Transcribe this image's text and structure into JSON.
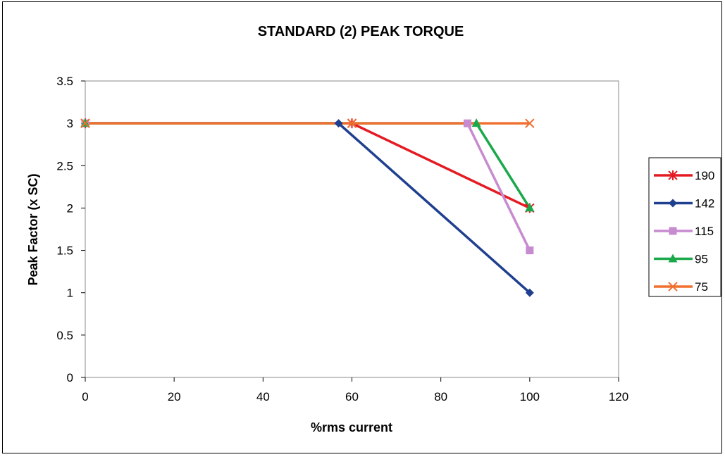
{
  "chart_data": {
    "type": "line",
    "title": "STANDARD (2) PEAK TORQUE",
    "xlabel": "%rms current",
    "ylabel": "Peak Factor (x SC)",
    "xlim": [
      0,
      120
    ],
    "ylim": [
      0,
      3.5
    ],
    "xticks": [
      0,
      20,
      40,
      60,
      80,
      100,
      120
    ],
    "yticks": [
      0,
      0.5,
      1,
      1.5,
      2,
      2.5,
      3,
      3.5
    ],
    "xtick_labels": [
      "0",
      "20",
      "40",
      "60",
      "80",
      "100",
      "120"
    ],
    "ytick_labels": [
      "0",
      "0.5",
      "1",
      "1.5",
      "2",
      "2.5",
      "3",
      "3.5"
    ],
    "grid": false,
    "legend_position": "right",
    "series": [
      {
        "name": "190",
        "color": "#e41b23",
        "marker": "asterisk",
        "x": [
          0,
          60,
          100
        ],
        "y": [
          3,
          3,
          2
        ]
      },
      {
        "name": "142",
        "color": "#1f3f8f",
        "marker": "diamond",
        "x": [
          0,
          57,
          100
        ],
        "y": [
          3,
          3,
          1
        ]
      },
      {
        "name": "115",
        "color": "#c78bd0",
        "marker": "square",
        "x": [
          0,
          86,
          100
        ],
        "y": [
          3,
          3,
          1.5
        ]
      },
      {
        "name": "95",
        "color": "#1aa84a",
        "marker": "triangle",
        "x": [
          0,
          88,
          100
        ],
        "y": [
          3,
          3,
          2
        ]
      },
      {
        "name": "75",
        "color": "#f07030",
        "marker": "x",
        "x": [
          0,
          60,
          100
        ],
        "y": [
          3,
          3,
          3
        ]
      }
    ]
  }
}
